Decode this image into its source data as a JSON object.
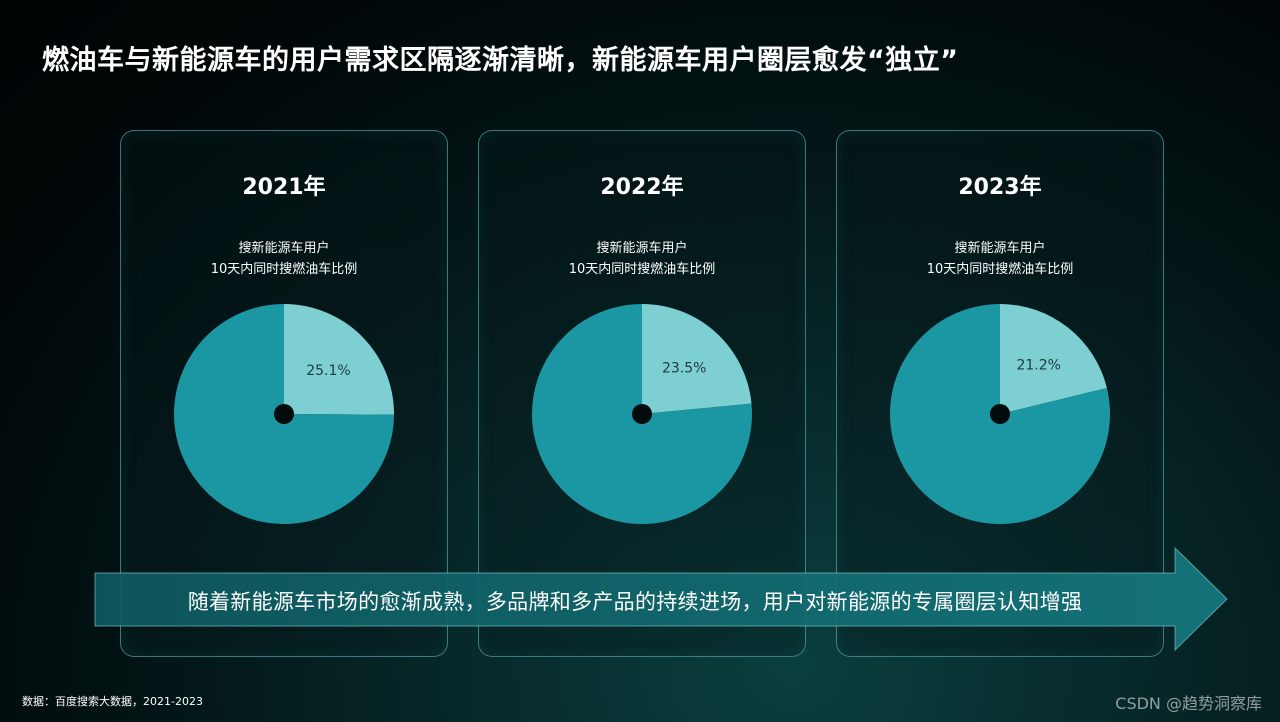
{
  "title": "燃油车与新能源车的用户需求区隔逐渐清晰，新能源车用户圈层愈发“独立”",
  "chart_data": [
    {
      "type": "pie",
      "title": "2021年",
      "subtitle_line1": "搜新能源车用户",
      "subtitle_line2": "10天内同时搜燃油车比例",
      "values": [
        25.1,
        74.9
      ],
      "labels": [
        "25.1%",
        ""
      ],
      "colors": [
        "#7ecfd2",
        "#1a97a2"
      ]
    },
    {
      "type": "pie",
      "title": "2022年",
      "subtitle_line1": "搜新能源车用户",
      "subtitle_line2": "10天内同时搜燃油车比例",
      "values": [
        23.5,
        76.5
      ],
      "labels": [
        "23.5%",
        ""
      ],
      "colors": [
        "#7ecfd2",
        "#1a97a2"
      ]
    },
    {
      "type": "pie",
      "title": "2023年",
      "subtitle_line1": "搜新能源车用户",
      "subtitle_line2": "10天内同时搜燃油车比例",
      "values": [
        21.2,
        78.8
      ],
      "labels": [
        "21.2%",
        ""
      ],
      "colors": [
        "#7ecfd2",
        "#1a97a2"
      ]
    }
  ],
  "banner_text": "随着新能源车市场的愈渐成熟，多品牌和多产品的持续进场，用户对新能源的专属圈层认知增强",
  "source": "数据：百度搜索大数据，2021-2023",
  "watermark": "CSDN @趋势洞察库"
}
